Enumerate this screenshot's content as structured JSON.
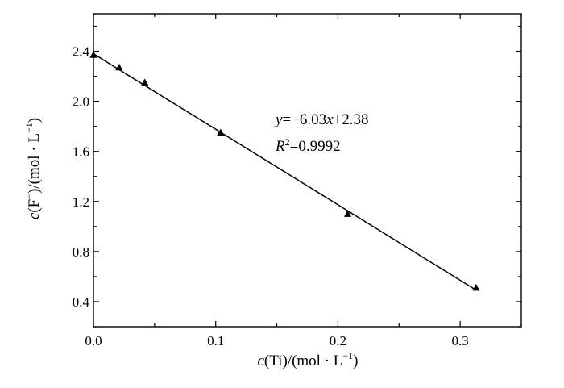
{
  "chart_data": {
    "type": "scatter",
    "title": "",
    "xlabel": {
      "var": "c",
      "pre": "(Ti)/(mol · L",
      "exp": "−1",
      "post": ")"
    },
    "ylabel": {
      "var": "c",
      "pre": "(F",
      "ion": "−",
      "mid": ")/(mol · L",
      "exp": "−1",
      "post": ")"
    },
    "xlim": [
      0,
      0.35
    ],
    "ylim": [
      0.2,
      2.7
    ],
    "x_ticks": [
      0.0,
      0.1,
      0.2,
      0.3
    ],
    "x_tick_labels": [
      "0.0",
      "0.1",
      "0.2",
      "0.3"
    ],
    "y_ticks": [
      0.4,
      0.8,
      1.2,
      1.6,
      2.0,
      2.4
    ],
    "y_tick_labels": [
      "0.4",
      "0.8",
      "1.2",
      "1.6",
      "2.0",
      "2.4"
    ],
    "grid": false,
    "marker": "triangle",
    "series": [
      {
        "x": [
          0.0,
          0.021,
          0.042,
          0.104,
          0.208,
          0.313
        ],
        "y": [
          2.37,
          2.27,
          2.15,
          1.75,
          1.1,
          0.51
        ]
      }
    ],
    "fit": {
      "slope": -6.03,
      "intercept": 2.38,
      "x_range": [
        0.0,
        0.313
      ]
    },
    "annotation": {
      "line1": {
        "lhs": "y",
        "rest": "=−6.03x+2.38",
        "rest_a": "=−6.03",
        "var_x": "x",
        "rest_b": "+2.38"
      },
      "line2": {
        "lhs": "R",
        "sup": "2",
        "rest": "=0.9992"
      }
    }
  }
}
